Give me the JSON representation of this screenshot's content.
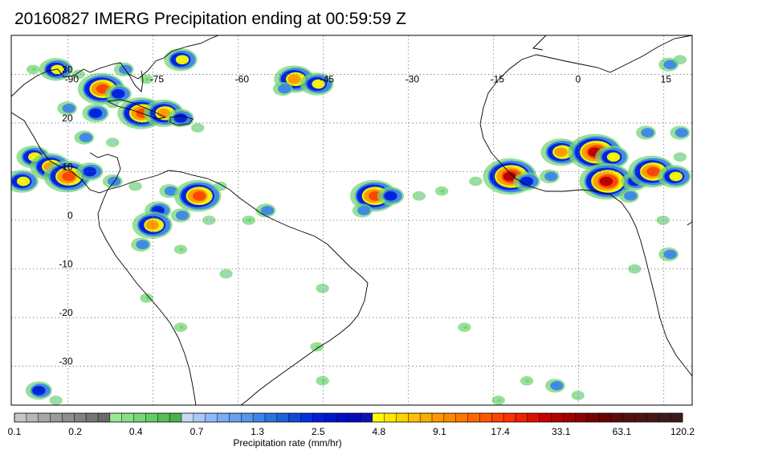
{
  "title": "20160827 IMERG Precipitation ending at 00:59:59 Z",
  "map": {
    "lon_range": [
      -100,
      20
    ],
    "lat_range": [
      -38,
      38
    ],
    "lon_ticks": [
      -90,
      -75,
      -60,
      -45,
      -30,
      -15,
      0,
      15
    ],
    "lon_tick_labels": [
      "-90",
      "-75",
      "-60",
      "-45",
      "-30",
      "-15",
      "0",
      "15"
    ],
    "lat_ticks": [
      30,
      20,
      10,
      0,
      -10,
      -20,
      -30
    ],
    "lat_tick_labels": [
      "30",
      "20",
      "10",
      "0",
      "-10",
      "-20",
      "-30"
    ],
    "grid": true,
    "grid_style": "dotted",
    "coastline_color": "#000000",
    "precip_cells": [
      {
        "lon": -96,
        "lat": 31,
        "level": 0.4
      },
      {
        "lon": -92,
        "lat": 31,
        "level": 4.8
      },
      {
        "lon": -88,
        "lat": 30,
        "level": 0.7
      },
      {
        "lon": -84,
        "lat": 27,
        "level": 17.4
      },
      {
        "lon": -81,
        "lat": 26,
        "level": 2.5
      },
      {
        "lon": -80,
        "lat": 31,
        "level": 1.3
      },
      {
        "lon": -76,
        "lat": 29,
        "level": 0.4
      },
      {
        "lon": -70,
        "lat": 33,
        "level": 4.8
      },
      {
        "lon": -50,
        "lat": 29,
        "level": 9.1
      },
      {
        "lon": -46,
        "lat": 28,
        "level": 4.8
      },
      {
        "lon": -52,
        "lat": 27,
        "level": 1.3
      },
      {
        "lon": -90,
        "lat": 23,
        "level": 1.3
      },
      {
        "lon": -85,
        "lat": 22,
        "level": 2.5
      },
      {
        "lon": -82,
        "lat": 24,
        "level": 0.7
      },
      {
        "lon": -77,
        "lat": 22,
        "level": 17.4
      },
      {
        "lon": -73,
        "lat": 22,
        "level": 9.1
      },
      {
        "lon": -70,
        "lat": 21,
        "level": 2.5
      },
      {
        "lon": -67,
        "lat": 19,
        "level": 0.7
      },
      {
        "lon": -87,
        "lat": 17,
        "level": 1.3
      },
      {
        "lon": -82,
        "lat": 16,
        "level": 0.7
      },
      {
        "lon": -96,
        "lat": 13,
        "level": 4.8
      },
      {
        "lon": -93,
        "lat": 11,
        "level": 9.1
      },
      {
        "lon": -90,
        "lat": 9,
        "level": 17.4
      },
      {
        "lon": -86,
        "lat": 10,
        "level": 2.5
      },
      {
        "lon": -98,
        "lat": 8,
        "level": 4.8
      },
      {
        "lon": -82,
        "lat": 8,
        "level": 1.3
      },
      {
        "lon": -78,
        "lat": 7,
        "level": 0.7
      },
      {
        "lon": -72,
        "lat": 6,
        "level": 1.3
      },
      {
        "lon": -67,
        "lat": 5,
        "level": 17.4
      },
      {
        "lon": -63,
        "lat": 7,
        "level": 0.7
      },
      {
        "lon": -74,
        "lat": 2,
        "level": 2.5
      },
      {
        "lon": -75,
        "lat": -1,
        "level": 9.1
      },
      {
        "lon": -70,
        "lat": 1,
        "level": 1.3
      },
      {
        "lon": -65,
        "lat": 0,
        "level": 0.7
      },
      {
        "lon": -58,
        "lat": 0,
        "level": 0.4
      },
      {
        "lon": -55,
        "lat": 2,
        "level": 1.3
      },
      {
        "lon": -77,
        "lat": -5,
        "level": 1.3
      },
      {
        "lon": -70,
        "lat": -6,
        "level": 0.4
      },
      {
        "lon": -62,
        "lat": -11,
        "level": 0.7
      },
      {
        "lon": -36,
        "lat": 5,
        "level": 17.4
      },
      {
        "lon": -33,
        "lat": 5,
        "level": 2.5
      },
      {
        "lon": -28,
        "lat": 5,
        "level": 0.7
      },
      {
        "lon": -38,
        "lat": 2,
        "level": 1.3
      },
      {
        "lon": -24,
        "lat": 6,
        "level": 0.4
      },
      {
        "lon": -18,
        "lat": 8,
        "level": 0.7
      },
      {
        "lon": -12,
        "lat": 9,
        "level": 33.1
      },
      {
        "lon": -9,
        "lat": 8,
        "level": 2.5
      },
      {
        "lon": -5,
        "lat": 9,
        "level": 1.3
      },
      {
        "lon": -3,
        "lat": 14,
        "level": 9.1
      },
      {
        "lon": 3,
        "lat": 14,
        "level": 33.1
      },
      {
        "lon": 6,
        "lat": 13,
        "level": 4.8
      },
      {
        "lon": 5,
        "lat": 8,
        "level": 33.1
      },
      {
        "lon": 10,
        "lat": 8,
        "level": 2.5
      },
      {
        "lon": 13,
        "lat": 10,
        "level": 17.4
      },
      {
        "lon": 17,
        "lat": 9,
        "level": 4.8
      },
      {
        "lon": 12,
        "lat": 18,
        "level": 1.3
      },
      {
        "lon": 18,
        "lat": 18,
        "level": 1.3
      },
      {
        "lon": 18,
        "lat": 13,
        "level": 0.7
      },
      {
        "lon": 9,
        "lat": 5,
        "level": 1.3
      },
      {
        "lon": 15,
        "lat": 0,
        "level": 0.7
      },
      {
        "lon": 16,
        "lat": -7,
        "level": 1.3
      },
      {
        "lon": 10,
        "lat": -10,
        "level": 0.7
      },
      {
        "lon": 16,
        "lat": 32,
        "level": 1.3
      },
      {
        "lon": 18,
        "lat": 33,
        "level": 0.7
      },
      {
        "lon": -45,
        "lat": -14,
        "level": 0.7
      },
      {
        "lon": -46,
        "lat": -26,
        "level": 0.4
      },
      {
        "lon": -76,
        "lat": -16,
        "level": 0.4
      },
      {
        "lon": -70,
        "lat": -22,
        "level": 0.4
      },
      {
        "lon": -95,
        "lat": -35,
        "level": 2.5
      },
      {
        "lon": -92,
        "lat": -37,
        "level": 0.7
      },
      {
        "lon": -9,
        "lat": -33,
        "level": 0.4
      },
      {
        "lon": -4,
        "lat": -34,
        "level": 1.3
      },
      {
        "lon": 0,
        "lat": -36,
        "level": 0.7
      },
      {
        "lon": -14,
        "lat": -37,
        "level": 0.4
      },
      {
        "lon": -45,
        "lat": -33,
        "level": 0.4
      },
      {
        "lon": -20,
        "lat": -22,
        "level": 0.4
      }
    ]
  },
  "colorbar": {
    "label": "Precipitation rate (mm/hr)",
    "tick_labels": [
      "0.1",
      "0.2",
      "0.4",
      "0.7",
      "1.3",
      "2.5",
      "4.8",
      "9.1",
      "17.4",
      "33.1",
      "63.1",
      "120.2"
    ],
    "colors": [
      "#c6c6c6",
      "#b6b6b6",
      "#a6a6a6",
      "#9a9a9a",
      "#8e8e8e",
      "#828282",
      "#767676",
      "#6a6a6a",
      "#98e898",
      "#86df86",
      "#74d674",
      "#62cd62",
      "#58bd58",
      "#4eae4e",
      "#c8d8f8",
      "#aac8f8",
      "#8eb8f8",
      "#7aacf2",
      "#68a2ee",
      "#5496ea",
      "#3e86e6",
      "#2a74e0",
      "#1c60dc",
      "#1248dc",
      "#0030e0",
      "#0020d8",
      "#0014d0",
      "#000cc8",
      "#0808c0",
      "#1010b8",
      "#fcfc00",
      "#fce800",
      "#fcd400",
      "#fcc000",
      "#fcac00",
      "#fc9800",
      "#fc8800",
      "#fc7800",
      "#fc6800",
      "#fc5800",
      "#fc4400",
      "#fc3000",
      "#f02000",
      "#dc1000",
      "#c80000",
      "#b40000",
      "#a00000",
      "#8c0000",
      "#7a0000",
      "#6a0000",
      "#5c0a0a",
      "#541010",
      "#4c1414",
      "#461818",
      "#3e1a1a",
      "#381c1c"
    ]
  }
}
